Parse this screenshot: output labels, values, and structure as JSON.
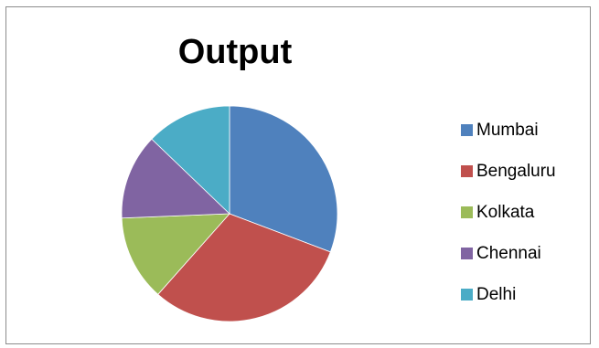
{
  "chart_data": {
    "type": "pie",
    "title": "Output",
    "categories": [
      "Mumbai",
      "Bengaluru",
      "Kolkata",
      "Chennai",
      "Delhi"
    ],
    "values": [
      30,
      30,
      12.5,
      12.5,
      12.5
    ],
    "colors": [
      "#4f81bd",
      "#c0504d",
      "#9bbb59",
      "#8064a2",
      "#4bacc6"
    ],
    "legend_position": "right",
    "start": "top, clockwise"
  }
}
